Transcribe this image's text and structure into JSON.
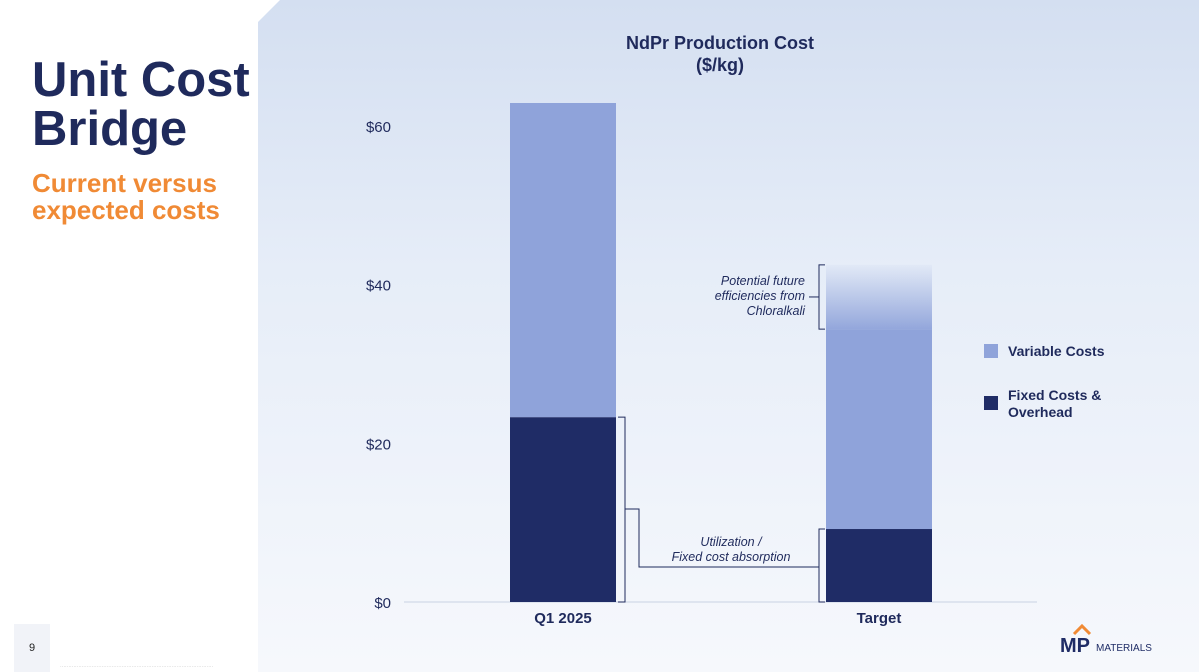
{
  "slide": {
    "title_line1": "Unit Cost",
    "title_line2": "Bridge",
    "subtitle_line1": "Current versus",
    "subtitle_line2": "expected costs",
    "page_number": "9",
    "logo_text": "MP MATERIALS"
  },
  "colors": {
    "variable": "#8fa3da",
    "fixed": "#1f2c66",
    "title": "#1f2a5c",
    "accent": "#f08a35"
  },
  "chart_data": {
    "type": "bar",
    "stacked": true,
    "title": "NdPr Production Cost",
    "title_unit": "($/kg)",
    "categories": [
      "Q1 2025",
      "Target"
    ],
    "series": [
      {
        "name": "Fixed Costs & Overhead",
        "values": [
          23.3,
          9.2
        ]
      },
      {
        "name": "Variable Costs",
        "values": [
          39.6,
          33.3
        ]
      }
    ],
    "ylim": [
      0,
      63
    ],
    "yticks": [
      0,
      20,
      40,
      60
    ],
    "ytick_labels": [
      "$0",
      "$20",
      "$40",
      "$60"
    ],
    "legend_position": "right",
    "legend_labels": [
      {
        "text": [
          "Variable Costs"
        ]
      },
      {
        "text": [
          "Fixed Costs &",
          "Overhead"
        ]
      }
    ],
    "annotations": {
      "chloralkali": {
        "lines": [
          "Potential future",
          "efficiencies from",
          "Chloralkali"
        ],
        "range": [
          34.4,
          42.5
        ]
      },
      "utilization": {
        "lines": [
          "Utilization /",
          "Fixed cost absorption"
        ]
      }
    }
  }
}
